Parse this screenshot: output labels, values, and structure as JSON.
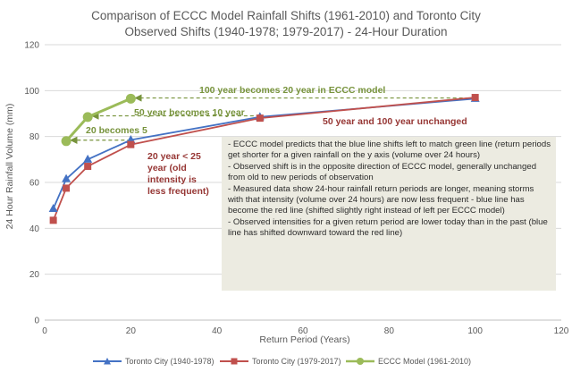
{
  "chart_data": {
    "type": "line",
    "title_lines": [
      "Comparison of ECCC Model Rainfall Shifts (1961-2010) and Toronto City",
      "Observed Shifts (1940-1978; 1979-2017) - 24-Hour Duration"
    ],
    "xlabel": "Return Period (Years)",
    "ylabel": "24 Hour Rainfall Volume (mm)",
    "xlim": [
      0,
      120
    ],
    "ylim": [
      0,
      120
    ],
    "x_ticks": [
      0,
      20,
      40,
      60,
      80,
      100,
      120
    ],
    "y_ticks": [
      0,
      20,
      40,
      60,
      80,
      100,
      120
    ],
    "grid": "horizontal",
    "legend_position": "bottom",
    "series": [
      {
        "name": "Toronto City (1940-1978)",
        "color": "#4472c4",
        "marker": "triangle",
        "x": [
          2,
          5,
          10,
          20,
          50,
          100
        ],
        "y": [
          48.5,
          61.5,
          70,
          78.5,
          88.5,
          96.5
        ]
      },
      {
        "name": "Toronto City (1979-2017)",
        "color": "#c0504d",
        "marker": "square",
        "x": [
          2,
          5,
          10,
          20,
          50,
          100
        ],
        "y": [
          43.5,
          57.5,
          67,
          76.5,
          88,
          97
        ]
      },
      {
        "name": "ECCC Model (1961-2010)",
        "color": "#9bbb59",
        "marker": "circle",
        "x": [
          5,
          10,
          20
        ],
        "y": [
          78,
          88.5,
          96.5
        ]
      }
    ],
    "annotations": [
      {
        "text": "100 year becomes 20 year in ECCC model",
        "color": "#77933c",
        "arrow_from": [
          100,
          96.8
        ],
        "arrow_to": [
          21,
          96.8
        ]
      },
      {
        "text": "50 year becomes 10 year",
        "color": "#77933c",
        "arrow_from": [
          50,
          89
        ],
        "arrow_to": [
          11,
          89
        ]
      },
      {
        "text": "20 becomes 5",
        "color": "#77933c",
        "arrow_from": [
          20,
          78.4
        ],
        "arrow_to": [
          6,
          78.4
        ]
      },
      {
        "text": "50 year and 100 year unchanged",
        "color": "#963634"
      },
      {
        "lines": [
          "20 year < 25",
          "year (old",
          "intensity is",
          "less frequent)"
        ],
        "color": "#963634"
      }
    ]
  },
  "notes": [
    "- ECCC model predicts that the blue line shifts left to match green line (return periods get shorter for a given rainfall on the y axis (volume over 24 hours)",
    "- Observed shift is in the opposite direction of ECCC model, generally unchanged from old to new periods of observation",
    "- Measured data show 24-hour rainfall return periods are longer, meaning storms with that intensity (volume over 24 hours) are now less frequent - blue line has become the red line (shifted slightly right instead of left per ECCC model)",
    "- Observed intensities for a given return period are lower today than in the past (blue line has shifted downward toward the red line)"
  ]
}
